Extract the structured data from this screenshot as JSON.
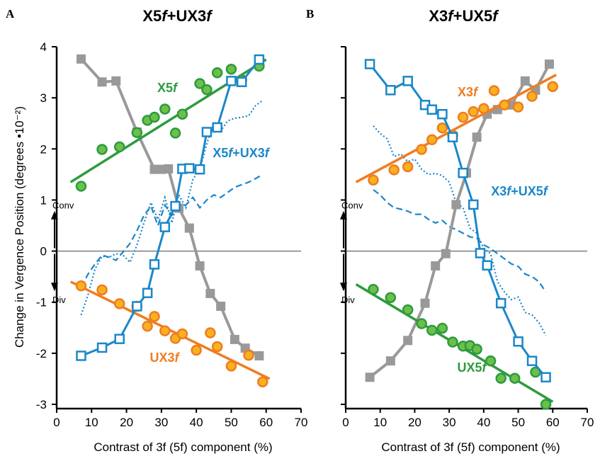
{
  "chart_data": [
    {
      "panel": "A",
      "title": "X5f+UX3f",
      "type": "scatter",
      "xlabel": "Contrast of 3f (5f) component (%)",
      "ylabel": "Change in Vergence Position (degrees •10⁻²)",
      "xlim": [
        0,
        70
      ],
      "ylim": [
        -3,
        4
      ],
      "xticks": [
        "0",
        "10",
        "20",
        "30",
        "40",
        "50",
        "60",
        "70"
      ],
      "yticks": [
        "-3",
        "-2",
        "-1",
        "0",
        "1",
        "2",
        "3",
        "4"
      ],
      "annotations": {
        "up": "Conv",
        "down": "Div"
      },
      "series": [
        {
          "name": "X5f",
          "color": "#2e9b3e",
          "marker": "circle",
          "fill": "#6cc04a",
          "x": [
            7,
            13,
            18,
            23,
            26,
            28,
            31,
            34,
            36,
            41,
            43,
            46,
            50,
            53,
            58
          ],
          "y": [
            1.27,
            1.99,
            2.04,
            2.32,
            2.56,
            2.62,
            2.78,
            2.31,
            2.68,
            3.28,
            3.16,
            3.49,
            3.56,
            3.35,
            3.62
          ],
          "fit": {
            "x": [
              4,
              60
            ],
            "y": [
              1.35,
              3.75
            ]
          }
        },
        {
          "name": "UX3f",
          "color": "#ef7d22",
          "marker": "circle",
          "fill": "#f8b21e",
          "x": [
            7,
            13,
            18,
            23,
            26,
            28,
            31,
            34,
            36,
            40,
            44,
            46,
            50,
            55,
            59
          ],
          "y": [
            -0.68,
            -0.76,
            -1.03,
            -1.08,
            -1.47,
            -1.28,
            -1.56,
            -1.71,
            -1.62,
            -1.94,
            -1.6,
            -1.87,
            -2.25,
            -2.04,
            -2.56
          ],
          "fit": {
            "x": [
              4,
              61
            ],
            "y": [
              -0.6,
              -2.5
            ]
          }
        },
        {
          "name": "X5f+UX3f",
          "color": "#1b87c9",
          "marker": "square-open",
          "x": [
            7,
            13,
            18,
            23,
            26,
            28,
            31,
            34,
            36,
            38,
            41,
            43,
            46,
            50,
            53,
            58
          ],
          "y": [
            -2.05,
            -1.89,
            -1.72,
            -1.08,
            -0.82,
            -0.26,
            0.47,
            0.88,
            1.61,
            1.62,
            1.6,
            2.33,
            2.42,
            3.33,
            3.31,
            3.75
          ]
        },
        {
          "name": "",
          "color": "#999999",
          "marker": "square-filled",
          "x": [
            7,
            13,
            17,
            23,
            28,
            30,
            32,
            35,
            38,
            41,
            44,
            47,
            51,
            54,
            58
          ],
          "y": [
            3.76,
            3.31,
            3.33,
            2.33,
            1.6,
            1.6,
            1.61,
            0.84,
            0.45,
            -0.29,
            -0.83,
            -1.08,
            -1.73,
            -1.9,
            -2.05
          ]
        },
        {
          "name": "",
          "color": "#1b87c9",
          "style": "dotted",
          "x": [
            7,
            9,
            11,
            13,
            15,
            17,
            19,
            21,
            23,
            25,
            27,
            29,
            31,
            33,
            35,
            37,
            39,
            41,
            43,
            45,
            47,
            49,
            51,
            53,
            55,
            57,
            59
          ],
          "y": [
            -1.25,
            -0.85,
            -0.35,
            -0.1,
            -0.12,
            -0.05,
            -0.08,
            -0.22,
            0.12,
            0.55,
            0.95,
            0.62,
            1.05,
            0.55,
            1.1,
            0.85,
            1.4,
            1.6,
            2.1,
            2.5,
            2.35,
            2.55,
            2.6,
            2.62,
            2.65,
            2.85,
            2.95
          ]
        },
        {
          "name": "",
          "color": "#1b87c9",
          "style": "dashed",
          "x": [
            7,
            9,
            11,
            13,
            15,
            17,
            19,
            21,
            23,
            25,
            27,
            29,
            31,
            33,
            35,
            37,
            39,
            41,
            43,
            45,
            47,
            49,
            51,
            53,
            55,
            57,
            59
          ],
          "y": [
            -0.7,
            -0.45,
            -0.25,
            -0.08,
            -0.12,
            -0.18,
            -0.02,
            0.15,
            0.4,
            0.7,
            0.88,
            0.5,
            0.9,
            0.7,
            0.82,
            0.9,
            1.05,
            0.85,
            1.0,
            1.1,
            1.05,
            1.15,
            1.25,
            1.3,
            1.35,
            1.42,
            1.5
          ]
        }
      ]
    },
    {
      "panel": "B",
      "title": "X3f+UX5f",
      "type": "scatter",
      "xlabel": "Contrast of 3f (5f) component (%)",
      "ylabel": "",
      "xlim": [
        0,
        70
      ],
      "ylim": [
        -3,
        4
      ],
      "xticks": [
        "0",
        "10",
        "20",
        "30",
        "40",
        "50",
        "60",
        "70"
      ],
      "yticks": [],
      "annotations": {
        "up": "Conv",
        "down": "Div"
      },
      "series": [
        {
          "name": "X3f",
          "color": "#ef7d22",
          "marker": "circle",
          "fill": "#f8b21e",
          "x": [
            8,
            14,
            18,
            22,
            25,
            28,
            31,
            34,
            37,
            40,
            43,
            46,
            50,
            54,
            60
          ],
          "y": [
            1.39,
            1.59,
            1.65,
            1.99,
            2.18,
            2.41,
            2.27,
            2.62,
            2.73,
            2.79,
            3.14,
            2.86,
            2.82,
            3.03,
            3.22
          ],
          "fit": {
            "x": [
              3,
              61
            ],
            "y": [
              1.35,
              3.45
            ]
          }
        },
        {
          "name": "UX5f",
          "color": "#2e9b3e",
          "marker": "circle",
          "fill": "#6cc04a",
          "x": [
            8,
            13,
            18,
            22,
            25,
            28,
            31,
            34,
            36,
            38,
            42,
            45,
            49,
            55,
            58
          ],
          "y": [
            -0.75,
            -0.91,
            -1.15,
            -1.42,
            -1.55,
            -1.51,
            -1.78,
            -1.86,
            -1.85,
            -1.92,
            -2.15,
            -2.49,
            -2.49,
            -2.37,
            -3.0
          ],
          "fit": {
            "x": [
              3,
              60
            ],
            "y": [
              -0.65,
              -2.95
            ]
          }
        },
        {
          "name": "X3f+UX5f",
          "color": "#1b87c9",
          "marker": "square-open",
          "x": [
            7,
            13,
            18,
            23,
            25,
            28,
            31,
            34,
            37,
            39,
            41,
            45,
            50,
            54,
            58
          ],
          "y": [
            3.66,
            3.15,
            3.33,
            2.86,
            2.77,
            2.68,
            2.23,
            1.53,
            0.91,
            -0.04,
            -0.28,
            -1.02,
            -1.77,
            -2.15,
            -2.47
          ],
          "fit": null
        },
        {
          "name": "",
          "color": "#999999",
          "marker": "square-filled",
          "x": [
            7,
            13,
            18,
            23,
            26,
            29,
            32,
            35,
            38,
            41,
            44,
            48,
            52,
            55,
            59
          ],
          "y": [
            -2.47,
            -2.15,
            -1.75,
            -1.02,
            -0.29,
            -0.05,
            0.91,
            1.53,
            2.23,
            2.68,
            2.77,
            2.86,
            3.33,
            3.15,
            3.66
          ]
        },
        {
          "name": "",
          "color": "#1b87c9",
          "style": "dotted",
          "x": [
            8,
            10,
            12,
            14,
            16,
            18,
            20,
            22,
            24,
            26,
            28,
            30,
            32,
            34,
            36,
            38,
            40,
            42,
            44,
            46,
            48,
            50,
            52,
            54,
            56,
            58
          ],
          "y": [
            2.45,
            2.3,
            2.2,
            1.85,
            1.9,
            1.75,
            1.8,
            1.6,
            1.5,
            1.52,
            1.48,
            1.35,
            0.95,
            0.85,
            0.45,
            0.35,
            0.05,
            -0.05,
            -0.6,
            -0.8,
            -0.95,
            -0.9,
            -1.2,
            -1.25,
            -1.4,
            -1.65
          ]
        },
        {
          "name": "",
          "color": "#1b87c9",
          "style": "dashed",
          "x": [
            8,
            10,
            12,
            14,
            16,
            18,
            20,
            22,
            24,
            26,
            28,
            30,
            32,
            34,
            36,
            38,
            40,
            42,
            44,
            46,
            48,
            50,
            52,
            54,
            56,
            58
          ],
          "y": [
            1.2,
            1.1,
            0.95,
            0.85,
            0.82,
            0.78,
            0.72,
            0.72,
            0.62,
            0.55,
            0.6,
            0.48,
            0.42,
            0.35,
            0.28,
            0.25,
            0.12,
            0.05,
            -0.05,
            -0.15,
            -0.25,
            -0.3,
            -0.45,
            -0.5,
            -0.6,
            -0.8
          ]
        }
      ]
    }
  ]
}
